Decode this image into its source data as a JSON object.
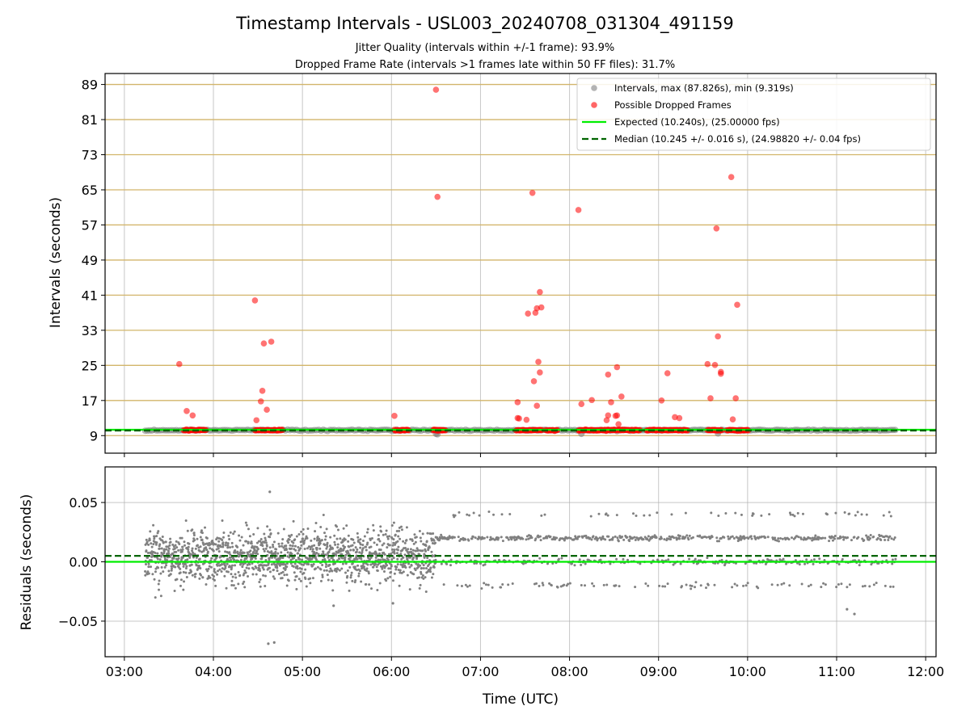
{
  "figure": {
    "title": "Timestamp Intervals - USL003_20240708_031304_491159",
    "subtitle_line1": "Jitter Quality (intervals within +/-1 frame): 93.9%",
    "subtitle_line2": "Dropped Frame Rate (intervals >1 frames late within 50 FF files): 31.7%"
  },
  "colors": {
    "intervals": "#808080",
    "dropped": "#ff0000",
    "expected": "#00ee00",
    "median": "#006400",
    "hline": "#d2b56a",
    "grid": "#b0b0b0"
  },
  "chart_data": [
    {
      "type": "scatter",
      "xlabel": "",
      "ylabel": "Intervals (seconds)",
      "ylim": [
        5,
        91.5
      ],
      "xlim": [
        "02:47",
        "12:07"
      ],
      "yticks": [
        9,
        17,
        25,
        33,
        41,
        49,
        57,
        65,
        73,
        81,
        89
      ],
      "yticklabels": [
        "9",
        "17",
        "25",
        "33",
        "41",
        "49",
        "57",
        "65",
        "73",
        "81",
        "89"
      ],
      "grid": true,
      "legend_position": "top-right",
      "legend": [
        {
          "label": "Intervals, max (87.826s), min (9.319s)",
          "kind": "marker",
          "color": "#808080"
        },
        {
          "label": "Possible Dropped Frames",
          "kind": "marker",
          "color": "#ff0000"
        },
        {
          "label": "Expected (10.240s), (25.00000 fps)",
          "kind": "line",
          "color": "#00ee00"
        },
        {
          "label": "Median (10.245 +/- 0.016 s), (24.98820 +/- 0.04 fps)",
          "kind": "dash",
          "color": "#006400"
        }
      ],
      "x_range_intervals": [
        "03:14",
        "11:40"
      ],
      "expected_y": 10.24,
      "median_y": 10.245,
      "dropped_clusters": [
        [
          "03:40",
          "03:55"
        ],
        [
          "04:28",
          "04:47"
        ],
        [
          "06:02",
          "06:12"
        ],
        [
          "06:28",
          "06:37"
        ],
        [
          "07:24",
          "07:42"
        ],
        [
          "07:44",
          "07:52"
        ],
        [
          "08:06",
          "08:48"
        ],
        [
          "08:52",
          "09:20"
        ],
        [
          "09:33",
          "09:43"
        ],
        [
          "09:46",
          "10:01"
        ]
      ],
      "series": [
        {
          "name": "Possible Dropped Frames",
          "points": [
            [
              "03:37",
              25.3
            ],
            [
              "03:42",
              14.6
            ],
            [
              "03:46",
              13.6
            ],
            [
              "04:28",
              39.8
            ],
            [
              "04:29",
              12.5
            ],
            [
              "04:32",
              16.8
            ],
            [
              "04:33",
              19.2
            ],
            [
              "04:34",
              30.0
            ],
            [
              "04:36",
              14.9
            ],
            [
              "04:39",
              30.4
            ],
            [
              "06:02",
              13.5
            ],
            [
              "06:30",
              87.8
            ],
            [
              "06:31",
              63.4
            ],
            [
              "07:25",
              16.6
            ],
            [
              "07:25",
              13.0
            ],
            [
              "07:26",
              12.9
            ],
            [
              "07:31",
              12.6
            ],
            [
              "07:32",
              36.8
            ],
            [
              "07:35",
              64.3
            ],
            [
              "07:36",
              21.4
            ],
            [
              "07:37",
              37.0
            ],
            [
              "07:38",
              15.8
            ],
            [
              "07:38",
              38.0
            ],
            [
              "07:39",
              25.8
            ],
            [
              "07:40",
              41.7
            ],
            [
              "07:40",
              23.4
            ],
            [
              "07:41",
              38.2
            ],
            [
              "08:06",
              60.4
            ],
            [
              "08:08",
              16.2
            ],
            [
              "08:15",
              17.1
            ],
            [
              "08:25",
              12.5
            ],
            [
              "08:26",
              13.6
            ],
            [
              "08:26",
              22.9
            ],
            [
              "08:28",
              16.6
            ],
            [
              "08:31",
              13.5
            ],
            [
              "08:32",
              13.6
            ],
            [
              "08:32",
              24.6
            ],
            [
              "08:33",
              11.6
            ],
            [
              "08:35",
              17.9
            ],
            [
              "09:02",
              17.0
            ],
            [
              "09:06",
              23.2
            ],
            [
              "09:11",
              13.2
            ],
            [
              "09:14",
              13.0
            ],
            [
              "09:33",
              25.3
            ],
            [
              "09:35",
              17.5
            ],
            [
              "09:38",
              25.1
            ],
            [
              "09:39",
              56.2
            ],
            [
              "09:40",
              31.6
            ],
            [
              "09:42",
              23.5
            ],
            [
              "09:42",
              23.1
            ],
            [
              "09:49",
              67.9
            ],
            [
              "09:50",
              12.7
            ],
            [
              "09:52",
              17.5
            ],
            [
              "09:53",
              38.8
            ]
          ]
        }
      ]
    },
    {
      "type": "scatter",
      "xlabel": "Time (UTC)",
      "ylabel": "Residuals (seconds)",
      "ylim": [
        -0.08,
        0.08
      ],
      "xlim": [
        "02:47",
        "12:07"
      ],
      "yticks": [
        0.05,
        0.0,
        -0.05
      ],
      "yticklabels": [
        "0.05",
        "0.00",
        "−0.05"
      ],
      "xticks": [
        "03:00",
        "04:00",
        "05:00",
        "06:00",
        "07:00",
        "08:00",
        "09:00",
        "10:00",
        "11:00",
        "12:00"
      ],
      "grid": true,
      "expected_y": 0.0,
      "median_y": 0.005,
      "noisy_period": [
        "03:14",
        "06:30"
      ],
      "banded_period": [
        "06:30",
        "11:40"
      ],
      "band_levels": [
        0.02,
        0.0,
        -0.02
      ],
      "outliers": [
        [
          "04:38",
          0.059
        ],
        [
          "04:37",
          -0.069
        ],
        [
          "04:41",
          -0.068
        ],
        [
          "05:21",
          -0.037
        ],
        [
          "06:01",
          -0.035
        ],
        [
          "11:07",
          -0.04
        ],
        [
          "11:12",
          -0.044
        ]
      ]
    }
  ]
}
